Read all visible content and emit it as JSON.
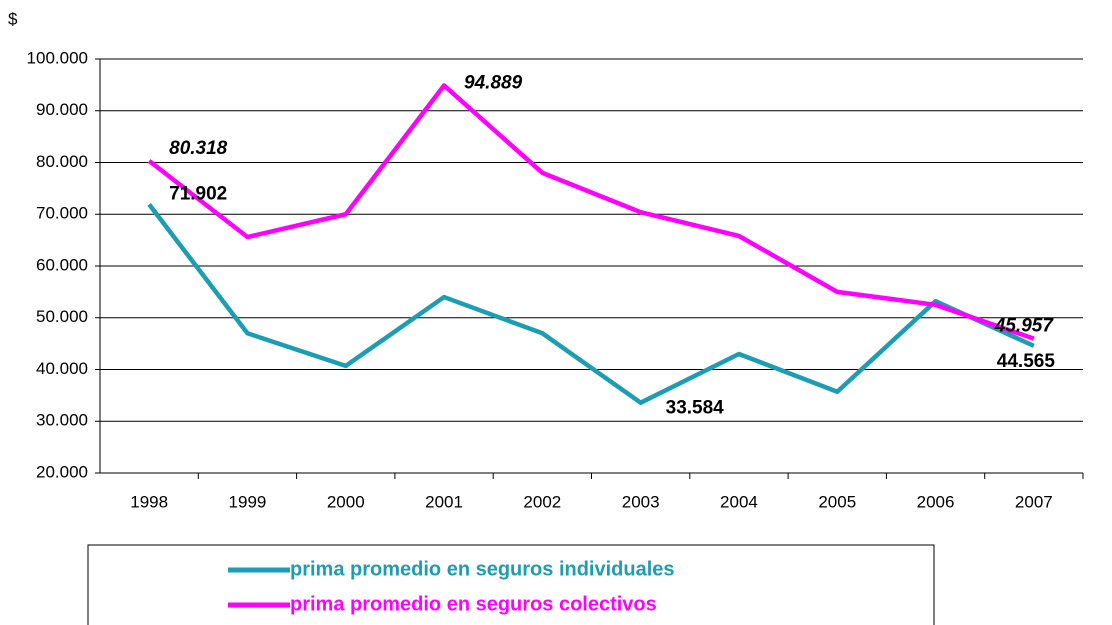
{
  "chart_data": {
    "type": "line",
    "y_label": "$",
    "categories": [
      "1998",
      "1999",
      "2000",
      "2001",
      "2002",
      "2003",
      "2004",
      "2005",
      "2006",
      "2007"
    ],
    "series": [
      {
        "name": "prima promedio en seguros individuales",
        "color": "#1b9db3",
        "values": [
          71902,
          47000,
          40700,
          54000,
          47000,
          33584,
          43000,
          35700,
          53200,
          44565
        ],
        "value_labels": [
          "71.902",
          null,
          null,
          null,
          null,
          "33.584",
          null,
          null,
          null,
          "44.565"
        ]
      },
      {
        "name": "prima promedio en seguros colectivos",
        "color": "#ff00ff",
        "values": [
          80318,
          65600,
          70000,
          94889,
          78000,
          70400,
          65800,
          55000,
          52500,
          45957
        ],
        "value_labels": [
          "80.318",
          null,
          null,
          "94.889",
          null,
          null,
          null,
          null,
          null,
          "45.957"
        ]
      }
    ],
    "ylim": [
      20000,
      100000
    ],
    "yticks": [
      {
        "value": 20000,
        "label": "20.000"
      },
      {
        "value": 30000,
        "label": "30.000"
      },
      {
        "value": 40000,
        "label": "40.000"
      },
      {
        "value": 50000,
        "label": "50.000"
      },
      {
        "value": 60000,
        "label": "60.000"
      },
      {
        "value": 70000,
        "label": "70.000"
      },
      {
        "value": 80000,
        "label": "80.000"
      },
      {
        "value": 90000,
        "label": "90.000"
      },
      {
        "value": 100000,
        "label": "100.000"
      }
    ],
    "grid": true,
    "legend": "bottom"
  }
}
